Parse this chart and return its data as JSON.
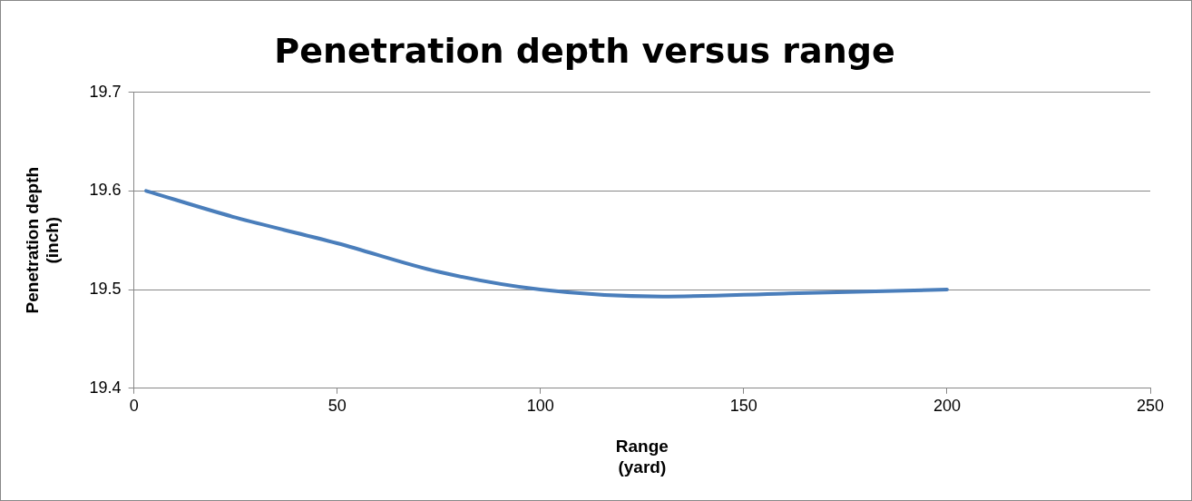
{
  "chart_data": {
    "type": "line",
    "title": "Penetration depth versus range",
    "xlabel": "Range\n(yard)",
    "ylabel": "Penetration depth\n(inch)",
    "x": [
      3,
      25,
      50,
      75,
      100,
      130,
      160,
      200
    ],
    "series": [
      {
        "color": "#4a7ebb",
        "values": [
          19.6,
          19.573,
          19.547,
          19.518,
          19.5,
          19.493,
          19.496,
          19.5
        ]
      }
    ],
    "xlim": [
      0,
      250
    ],
    "xticks": [
      0,
      50,
      100,
      150,
      200,
      250
    ],
    "ylim": [
      19.4,
      19.7
    ],
    "yticks": [
      19.4,
      19.5,
      19.6,
      19.7
    ],
    "grid": "y",
    "legend": false,
    "marker": "none",
    "line_style": "solid"
  }
}
